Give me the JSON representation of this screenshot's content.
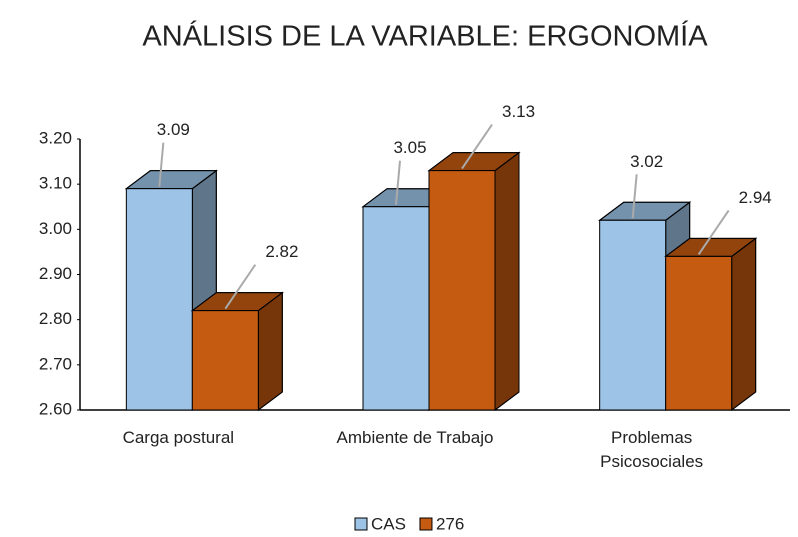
{
  "chart_data": {
    "type": "bar3d",
    "title": "ANÁLISIS DE LA VARIABLE: ERGONOMÍA",
    "categories": [
      "Carga postural",
      "Ambiente de Trabajo",
      "Problemas Psicosociales"
    ],
    "series": [
      {
        "name": "CAS",
        "color": "#9dc3e6",
        "values": [
          3.09,
          3.05,
          3.02
        ]
      },
      {
        "name": "276",
        "color": "#c55a11",
        "values": [
          2.82,
          3.13,
          2.94
        ]
      }
    ],
    "ylim": [
      2.6,
      3.2
    ],
    "yticks": [
      {
        "value": 2.6,
        "label": "2.60"
      },
      {
        "value": 2.7,
        "label": "2.70"
      },
      {
        "value": 2.8,
        "label": "2.80"
      },
      {
        "value": 2.9,
        "label": "2.90"
      },
      {
        "value": 3.0,
        "label": "3.00"
      },
      {
        "value": 3.1,
        "label": "3.10"
      },
      {
        "value": 3.2,
        "label": "3.20"
      }
    ],
    "legend": "bottom"
  }
}
